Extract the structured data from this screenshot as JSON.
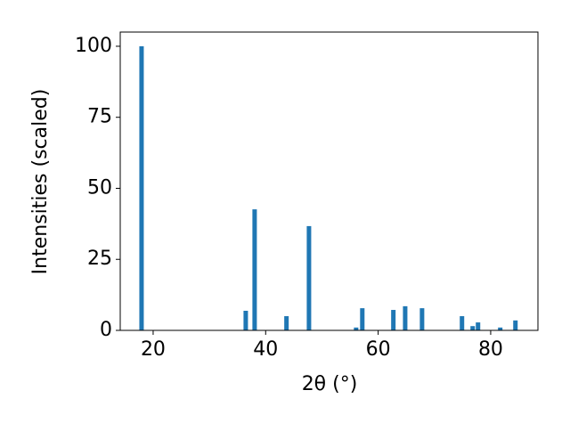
{
  "chart_data": {
    "type": "bar",
    "xlabel": "2θ (°)",
    "ylabel": "Intensities (scaled)",
    "x": [
      17.94,
      36.46,
      38.04,
      43.7,
      47.7,
      56.08,
      57.18,
      62.7,
      64.8,
      67.8,
      74.9,
      76.8,
      77.75,
      81.7,
      84.4
    ],
    "values": [
      100,
      6.9,
      42.6,
      5.0,
      36.7,
      1.0,
      7.8,
      7.2,
      8.5,
      7.8,
      5.0,
      1.5,
      2.8,
      1.0,
      3.5
    ],
    "color": "#1f77b4",
    "xlim": [
      14.15,
      88.4
    ],
    "xticks": [
      20,
      40,
      60,
      80
    ],
    "ylim": [
      0,
      105
    ],
    "yticks": [
      0,
      25,
      50,
      75,
      100
    ]
  }
}
